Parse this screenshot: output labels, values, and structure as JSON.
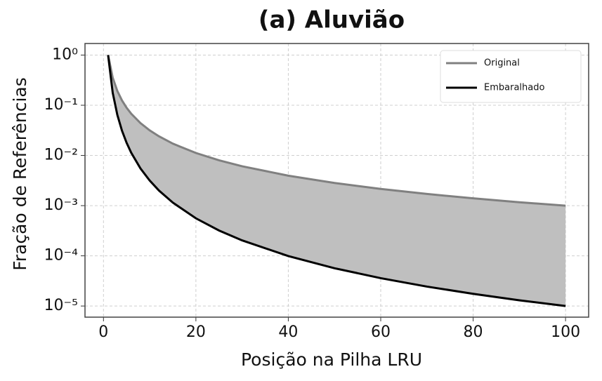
{
  "chart_data": {
    "type": "line",
    "title": "(a) Aluvião",
    "xlabel": "Posição na Pilha LRU",
    "ylabel": "Fração de Referências",
    "x": [
      1,
      2,
      3,
      4,
      5,
      6,
      8,
      10,
      12,
      15,
      20,
      25,
      30,
      40,
      50,
      60,
      70,
      80,
      90,
      100
    ],
    "series": [
      {
        "name": "Original",
        "color": "#808080",
        "values": [
          1,
          0.3536,
          0.1925,
          0.125,
          0.0894,
          0.068,
          0.0442,
          0.0316,
          0.0241,
          0.0172,
          0.0112,
          0.008,
          0.00609,
          0.00395,
          0.00283,
          0.00215,
          0.00171,
          0.0014,
          0.00117,
          0.001
        ]
      },
      {
        "name": "Embaralhado",
        "color": "#000000",
        "values": [
          1,
          0.1768,
          0.0642,
          0.03125,
          0.01789,
          0.01134,
          0.00552,
          0.00316,
          0.002,
          0.00115,
          0.000559,
          0.00032,
          0.000203,
          9.88e-05,
          5.66e-05,
          3.59e-05,
          2.44e-05,
          1.75e-05,
          1.3e-05,
          1e-05
        ]
      }
    ],
    "fill_between": true,
    "fill_color": "#bfbfbf",
    "xlim": [
      -4,
      105
    ],
    "xticks": [
      0,
      20,
      40,
      60,
      80,
      100
    ],
    "ylim": [
      6e-06,
      1.7
    ],
    "log_y": true,
    "yticks": [
      {
        "value": 1,
        "label": "10⁰"
      },
      {
        "value": 0.1,
        "label": "10⁻¹"
      },
      {
        "value": 0.01,
        "label": "10⁻²"
      },
      {
        "value": 0.001,
        "label": "10⁻³"
      },
      {
        "value": 0.0001,
        "label": "10⁻⁴"
      },
      {
        "value": 1e-05,
        "label": "10⁻⁵"
      }
    ],
    "grid": true,
    "legend": "upper right"
  }
}
